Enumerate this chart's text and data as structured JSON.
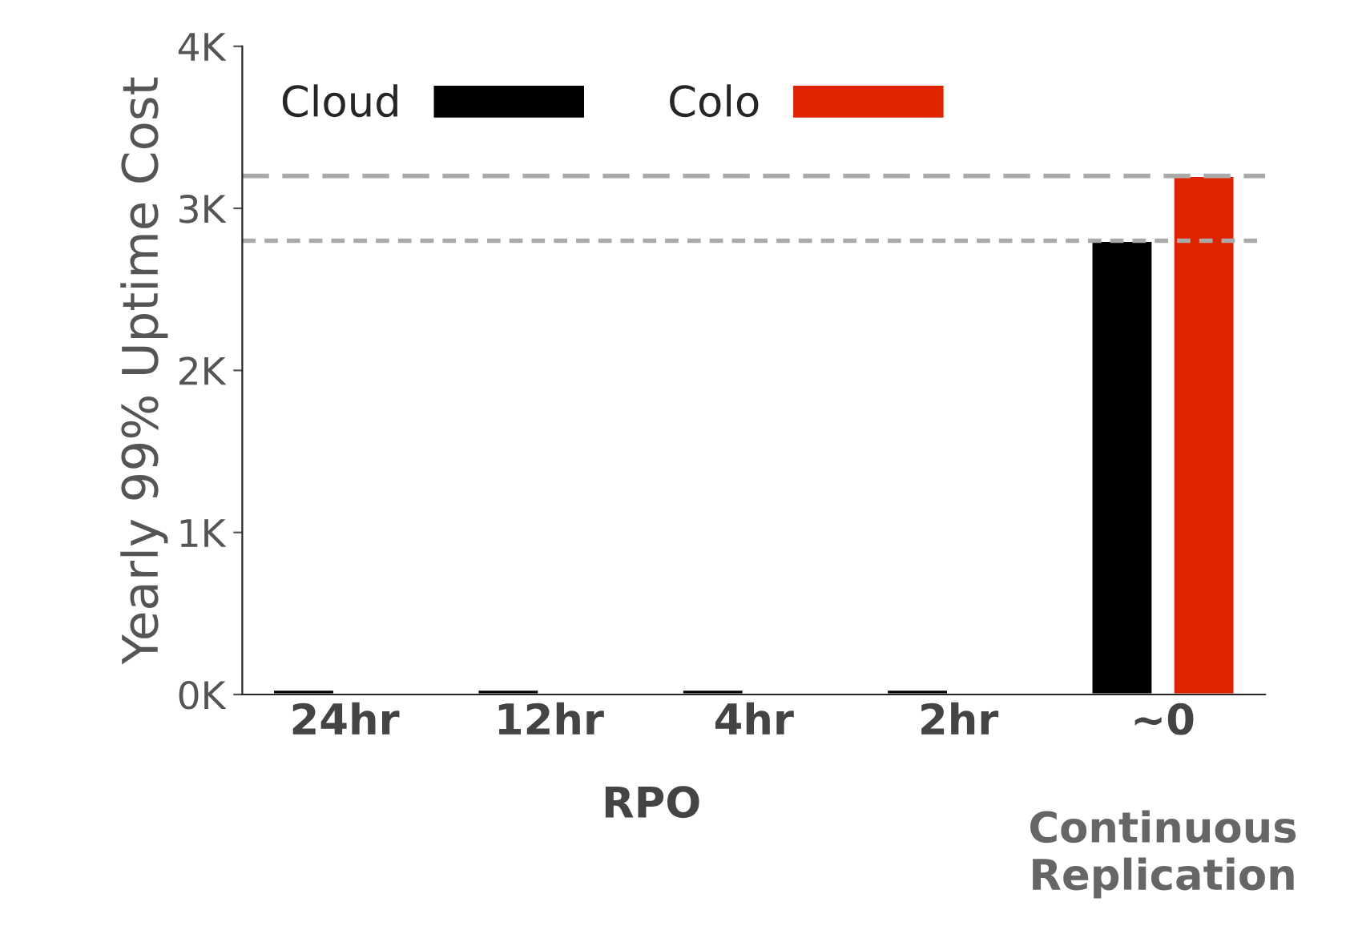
{
  "chart_data": {
    "type": "bar",
    "ylabel": "Yearly 99% Uptime Cost",
    "xlabel": "RPO",
    "categories": [
      "24hr",
      "12hr",
      "4hr",
      "2hr",
      "~0"
    ],
    "series": [
      {
        "name": "Cloud",
        "color": "#000000",
        "values": [
          30,
          30,
          30,
          30,
          2800
        ]
      },
      {
        "name": "Colo",
        "color": "#e02400",
        "values": [
          null,
          null,
          null,
          null,
          3200
        ]
      }
    ],
    "ylim": [
      0,
      4000
    ],
    "yticks": [
      {
        "value": 0,
        "label": "0K"
      },
      {
        "value": 1000,
        "label": "1K"
      },
      {
        "value": 2000,
        "label": "2K"
      },
      {
        "value": 3000,
        "label": "3K"
      },
      {
        "value": 4000,
        "label": "4K"
      }
    ],
    "ref_lines": [
      {
        "axis": "y",
        "value": 2800,
        "label": null,
        "color": "#aaaaaa",
        "line_style": "dotted"
      },
      {
        "axis": "y",
        "value": 3200,
        "label": null,
        "color": "#aaaaaa",
        "line_style": "dashed"
      }
    ],
    "annotations": [
      "Continuous Replication"
    ],
    "legend": "top left",
    "grid": false
  }
}
